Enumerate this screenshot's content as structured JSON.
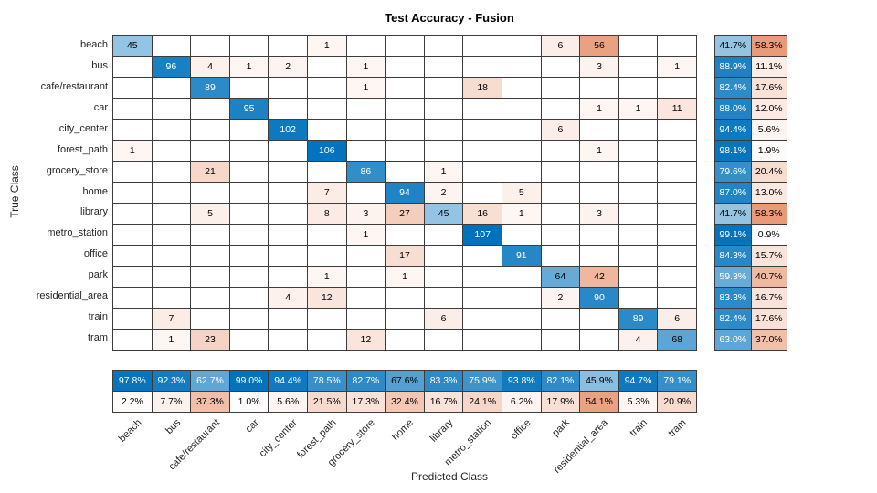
{
  "title": "Test Accuracy - Fusion",
  "xlabel": "Predicted Class",
  "ylabel": "True Class",
  "colors": {
    "diagonal_blue": "#0072BD",
    "offdiagonal_orange": "#D95319",
    "gridline": "#3c3c3c",
    "text_dark": "#000000",
    "text_light": "#ffffff"
  },
  "chart_data": {
    "type": "heatmap",
    "subtype": "confusion-matrix",
    "title": "Test Accuracy - Fusion",
    "xlabel": "Predicted Class",
    "ylabel": "True Class",
    "legend_position": "none",
    "grid": true,
    "classes": [
      "beach",
      "bus",
      "cafe/restaurant",
      "car",
      "city_center",
      "forest_path",
      "grocery_store",
      "home",
      "library",
      "metro_station",
      "office",
      "park",
      "residential_area",
      "train",
      "tram"
    ],
    "matrix": [
      [
        45,
        0,
        0,
        0,
        0,
        1,
        0,
        0,
        0,
        0,
        0,
        6,
        56,
        0,
        0
      ],
      [
        0,
        96,
        4,
        1,
        2,
        0,
        1,
        0,
        0,
        0,
        0,
        0,
        3,
        0,
        1
      ],
      [
        0,
        0,
        89,
        0,
        0,
        0,
        1,
        0,
        0,
        18,
        0,
        0,
        0,
        0,
        0
      ],
      [
        0,
        0,
        0,
        95,
        0,
        0,
        0,
        0,
        0,
        0,
        0,
        0,
        1,
        1,
        11
      ],
      [
        0,
        0,
        0,
        0,
        102,
        0,
        0,
        0,
        0,
        0,
        0,
        6,
        0,
        0,
        0
      ],
      [
        1,
        0,
        0,
        0,
        0,
        106,
        0,
        0,
        0,
        0,
        0,
        0,
        1,
        0,
        0
      ],
      [
        0,
        0,
        21,
        0,
        0,
        0,
        86,
        0,
        1,
        0,
        0,
        0,
        0,
        0,
        0
      ],
      [
        0,
        0,
        0,
        0,
        0,
        7,
        0,
        94,
        2,
        0,
        5,
        0,
        0,
        0,
        0
      ],
      [
        0,
        0,
        5,
        0,
        0,
        8,
        3,
        27,
        45,
        16,
        1,
        0,
        3,
        0,
        0
      ],
      [
        0,
        0,
        0,
        0,
        0,
        0,
        1,
        0,
        0,
        107,
        0,
        0,
        0,
        0,
        0
      ],
      [
        0,
        0,
        0,
        0,
        0,
        0,
        0,
        17,
        0,
        0,
        91,
        0,
        0,
        0,
        0
      ],
      [
        0,
        0,
        0,
        0,
        0,
        1,
        0,
        1,
        0,
        0,
        0,
        64,
        42,
        0,
        0
      ],
      [
        0,
        0,
        0,
        0,
        4,
        12,
        0,
        0,
        0,
        0,
        0,
        2,
        90,
        0,
        0
      ],
      [
        0,
        7,
        0,
        0,
        0,
        0,
        0,
        0,
        6,
        0,
        0,
        0,
        0,
        89,
        6
      ],
      [
        0,
        1,
        23,
        0,
        0,
        0,
        12,
        0,
        0,
        0,
        0,
        0,
        0,
        4,
        68
      ]
    ],
    "max_cell_value": 107,
    "row_summary": {
      "correct_pct": [
        41.7,
        88.9,
        82.4,
        88.0,
        94.4,
        98.1,
        79.6,
        87.0,
        41.7,
        99.1,
        84.3,
        59.3,
        83.3,
        82.4,
        63.0
      ],
      "incorrect_pct": [
        58.3,
        11.1,
        17.6,
        12.0,
        5.6,
        1.9,
        20.4,
        13.0,
        58.3,
        0.9,
        15.7,
        40.7,
        16.7,
        17.6,
        37.0
      ],
      "dark_text_indexes": []
    },
    "col_summary": {
      "correct_pct": [
        97.8,
        92.3,
        62.7,
        99.0,
        94.4,
        78.5,
        82.7,
        67.6,
        83.3,
        75.9,
        93.8,
        82.1,
        45.9,
        94.7,
        79.1
      ],
      "incorrect_pct": [
        2.2,
        7.7,
        37.3,
        1.0,
        5.6,
        21.5,
        17.3,
        32.4,
        16.7,
        24.1,
        6.2,
        17.9,
        54.1,
        5.3,
        20.9
      ],
      "dark_text_indexes": [
        7
      ]
    }
  }
}
